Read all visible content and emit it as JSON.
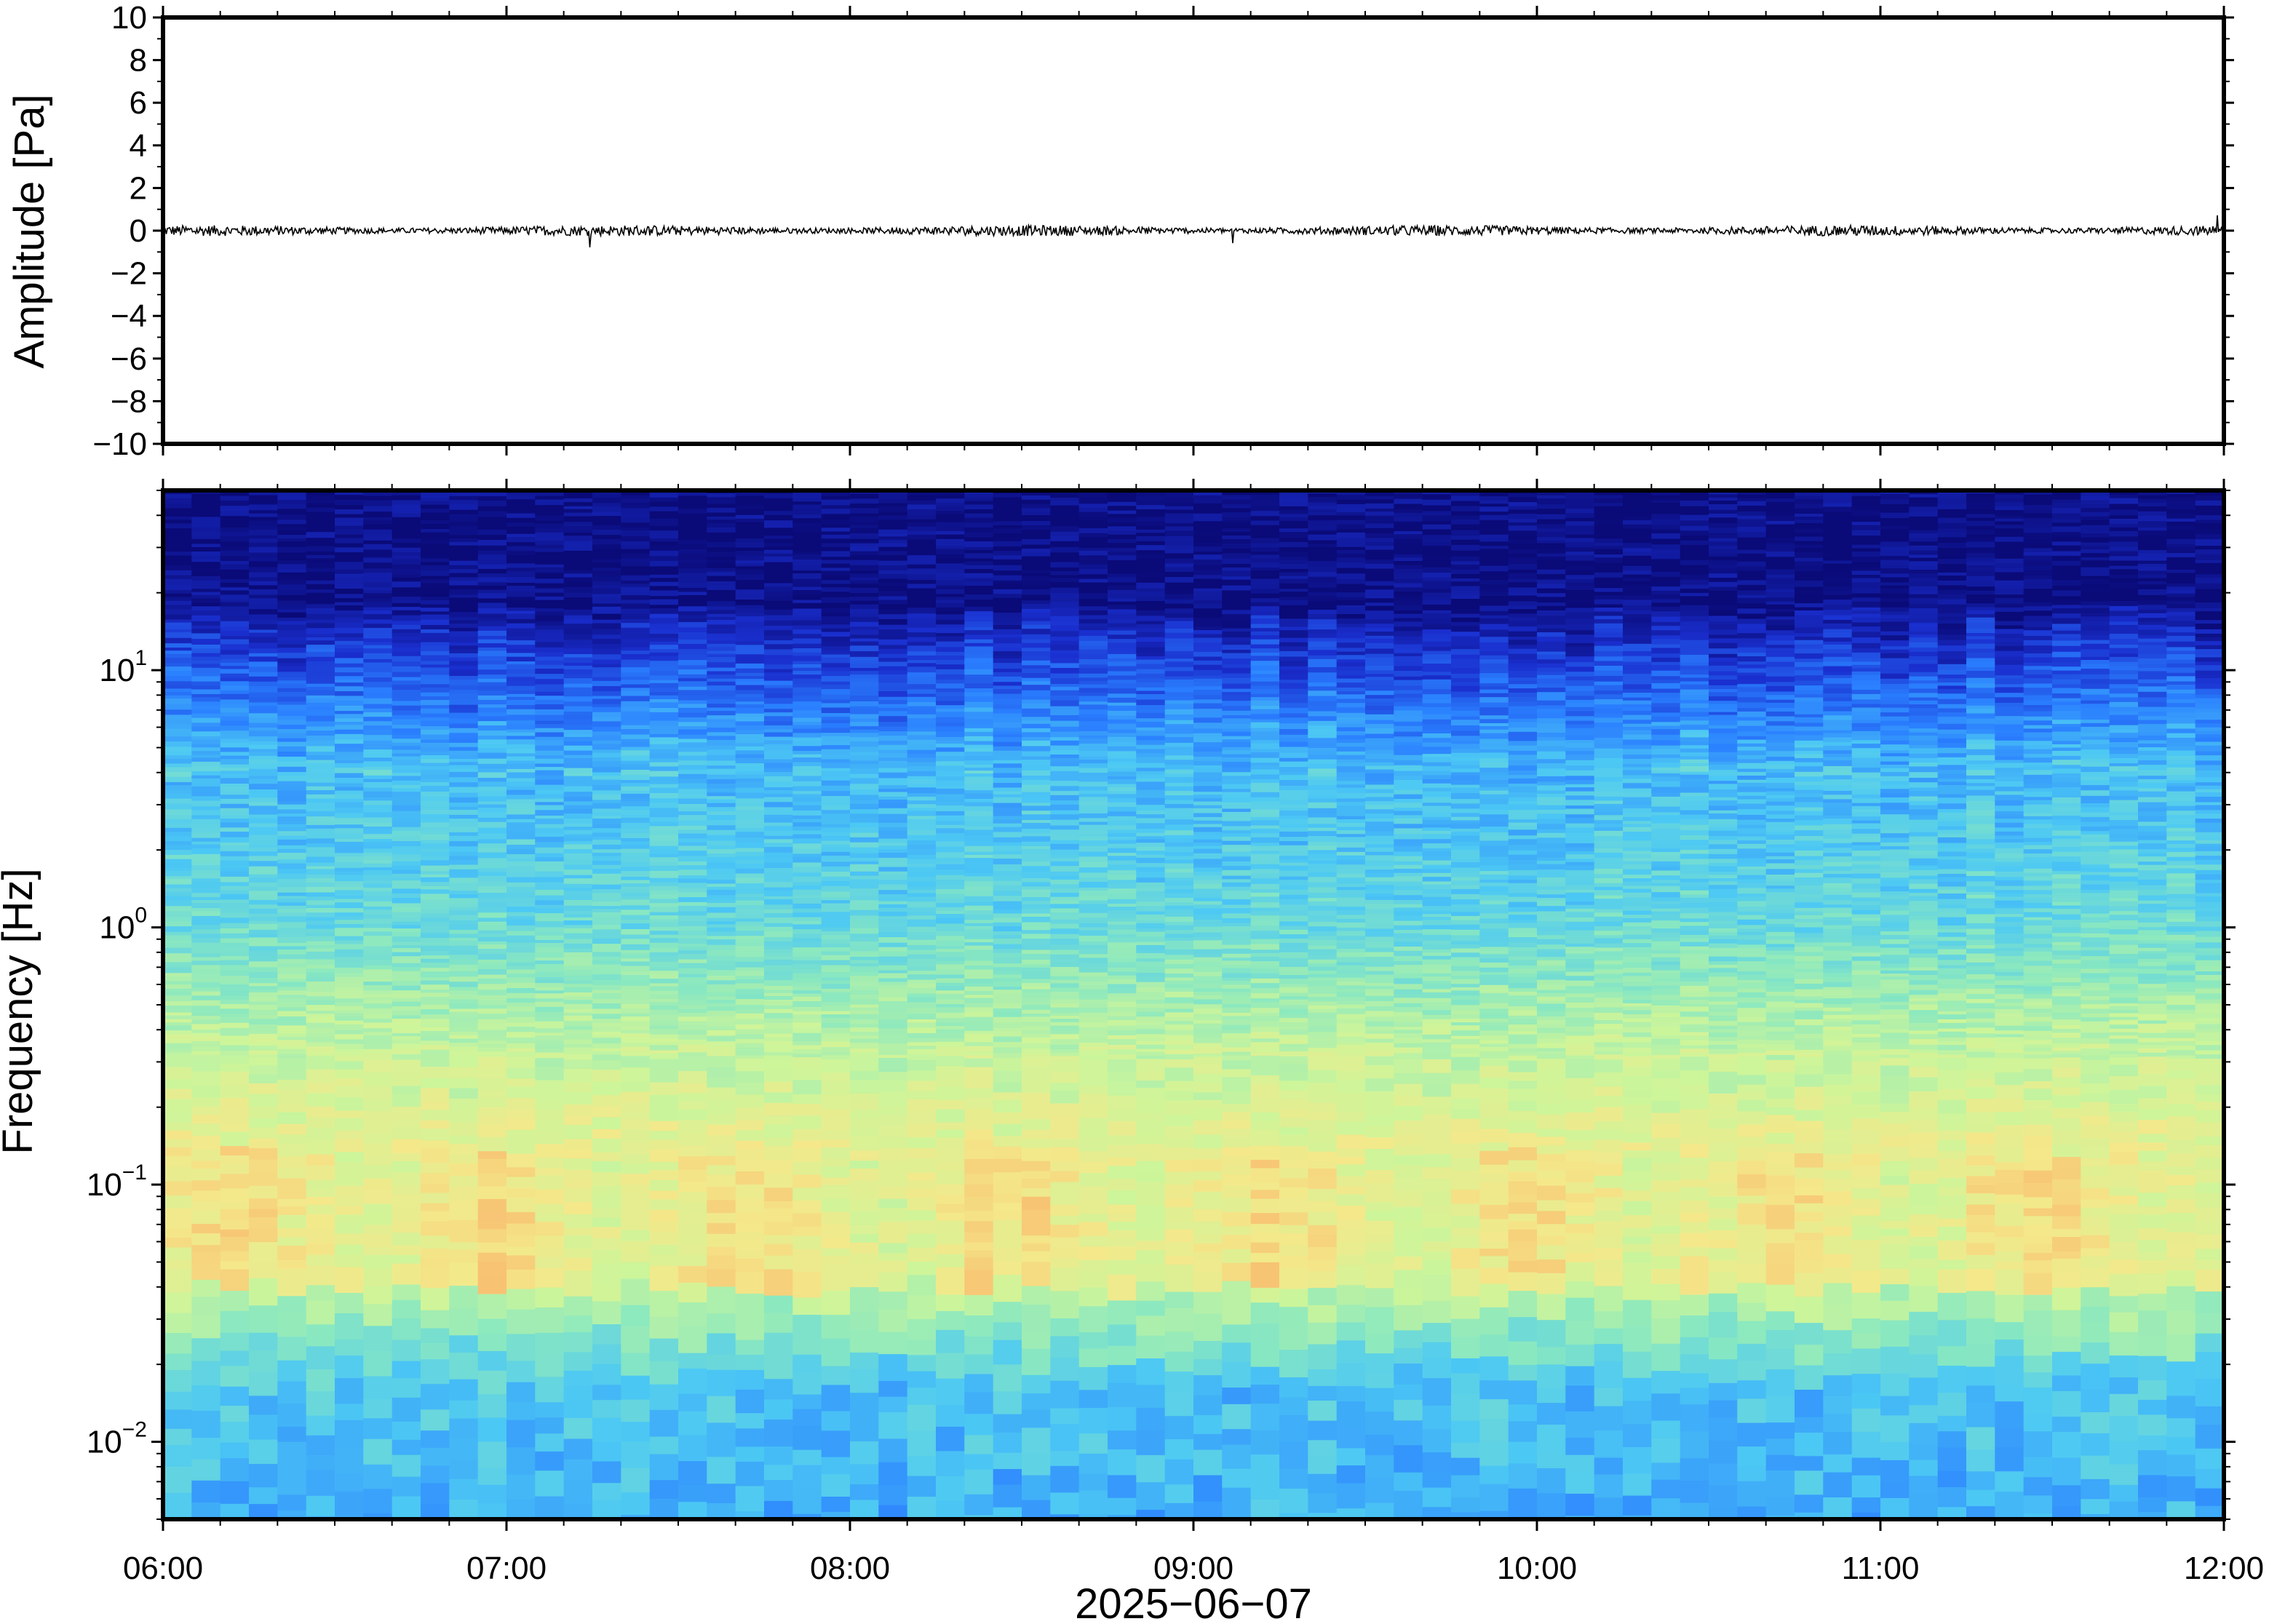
{
  "chart_data": [
    {
      "type": "line",
      "panel": "waveform",
      "ylabel": "Amplitude [Pa]",
      "ylim": [
        -10,
        10
      ],
      "yticks": [
        10,
        8,
        6,
        4,
        2,
        0,
        -2,
        -4,
        -6,
        -8,
        -10
      ],
      "ytick_labels": [
        "10",
        "8",
        "6",
        "4",
        "2",
        "0",
        "−2",
        "−4",
        "−6",
        "−8",
        "−10"
      ],
      "xlim": [
        "06:00",
        "12:00"
      ],
      "series": [
        {
          "values_note_free": true,
          "baseline": 0,
          "typical_peak": 0.25,
          "max_peak": 0.8
        }
      ],
      "color": "#000000"
    },
    {
      "type": "heatmap",
      "panel": "spectrogram",
      "ylabel": "Frequency [Hz]",
      "yscale": "log",
      "ylim": [
        0.005,
        50
      ],
      "yticks": [
        {
          "base": "10",
          "exp": "1",
          "value": 10
        },
        {
          "base": "10",
          "exp": "0",
          "value": 1
        },
        {
          "base": "10",
          "exp": "−1",
          "value": 0.1
        },
        {
          "base": "10",
          "exp": "−2",
          "value": 0.01
        }
      ],
      "xlabel": "2025−06−07",
      "xlim": [
        "06:00",
        "12:00"
      ],
      "xticks": [
        "06:00",
        "07:00",
        "08:00",
        "09:00",
        "10:00",
        "11:00",
        "12:00"
      ],
      "colormap": [
        "#0a0a78",
        "#1a2fcf",
        "#2a7fff",
        "#4cc8f4",
        "#8ae8c0",
        "#cdf59a",
        "#f4e88a",
        "#f9b46a",
        "#f08a4a"
      ],
      "columns": 72
    }
  ]
}
